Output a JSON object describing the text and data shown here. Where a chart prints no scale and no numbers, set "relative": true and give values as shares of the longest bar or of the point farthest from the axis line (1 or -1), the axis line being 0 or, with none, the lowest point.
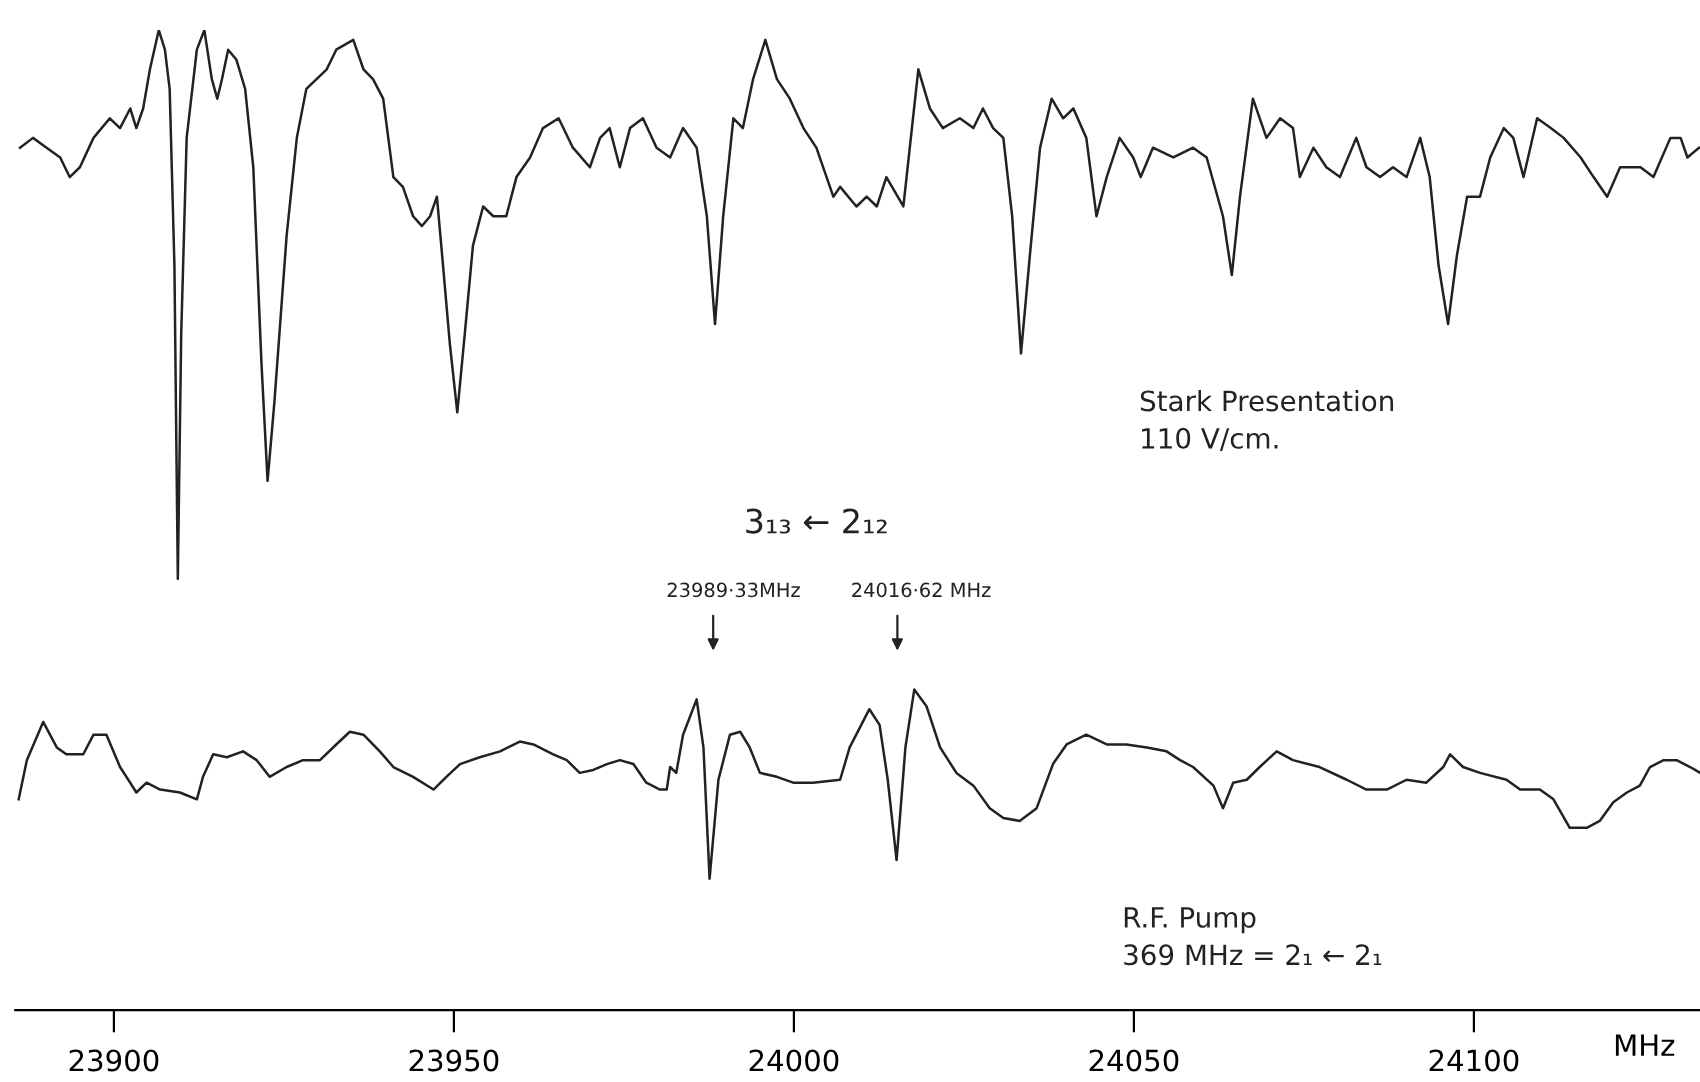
{
  "chart_data": {
    "type": "line",
    "relative": true,
    "tick_labels": "x",
    "xlim": [
      23885.5,
      24134
    ],
    "xticks": [
      23900,
      23950,
      24000,
      24050,
      24100
    ],
    "xlabel": "MHz",
    "series": [
      {
        "color": "#222222",
        "x": [
          23886.2,
          23888.1,
          23890.1,
          23892.1,
          23893.5,
          23895.0,
          23897.0,
          23899.4,
          23900.9,
          23902.4,
          23903.3,
          23904.3,
          23905.3,
          23906.6,
          23907.5,
          23908.2,
          23908.9,
          23909.4,
          23909.9,
          23910.7,
          23912.2,
          23913.3,
          23914.4,
          23915.2,
          23915.9,
          23916.8,
          23918.0,
          23919.3,
          23920.5,
          23921.7,
          23922.6,
          23923.6,
          23925.4,
          23926.9,
          23928.3,
          23929.8,
          23931.3,
          23932.7,
          23935.2,
          23936.7,
          23938.1,
          23939.6,
          23941.1,
          23942.5,
          23944.0,
          23945.3,
          23946.5,
          23947.5,
          23948.4,
          23949.4,
          23950.5,
          23951.6,
          23952.8,
          23954.3,
          23955.8,
          23957.7,
          23959.2,
          23961.2,
          23963.1,
          23965.4,
          23967.5,
          23970.0,
          23971.5,
          23972.9,
          23974.4,
          23975.9,
          23977.8,
          23979.8,
          23981.8,
          23983.7,
          23985.7,
          23987.2,
          23988.4,
          23989.6,
          23991.1,
          23992.5,
          23994.0,
          23995.8,
          23997.5,
          23999.4,
          24001.4,
          24003.3,
          24005.8,
          24006.8,
          24009.2,
          24010.7,
          24012.2,
          24013.6,
          24016.1,
          24018.3,
          24020.0,
          24021.9,
          24024.4,
          24026.4,
          24027.8,
          24029.3,
          24030.8,
          24032.1,
          24033.4,
          24034.7,
          24036.2,
          24037.9,
          24039.6,
          24041.1,
          24043.0,
          24044.5,
          24046.0,
          24047.9,
          24049.9,
          24051.0,
          24052.8,
          24055.8,
          24058.7,
          24060.7,
          24063.1,
          24064.4,
          24065.6,
          24067.5,
          24069.5,
          24071.5,
          24073.4,
          24074.4,
          24076.4,
          24078.3,
          24080.3,
          24082.7,
          24084.2,
          24086.2,
          24088.1,
          24090.1,
          24092.1,
          24093.5,
          24094.8,
          24096.2,
          24097.5,
          24099.0,
          24100.9,
          24102.4,
          24104.4,
          24105.8,
          24107.3,
          24109.3,
          24111.3,
          24113.2,
          24115.7,
          24117.6,
          24119.6,
          24121.5,
          24124.5,
          24126.4,
          24128.9,
          24130.4,
          24131.4,
          24133.1
        ],
        "values": [
          0.88,
          0.89,
          0.88,
          0.87,
          0.85,
          0.86,
          0.89,
          0.91,
          0.9,
          0.92,
          0.9,
          0.92,
          0.96,
          1.0,
          0.98,
          0.94,
          0.76,
          0.44,
          0.69,
          0.89,
          0.98,
          1.0,
          0.95,
          0.93,
          0.95,
          0.98,
          0.97,
          0.94,
          0.86,
          0.66,
          0.54,
          0.62,
          0.79,
          0.89,
          0.94,
          0.95,
          0.96,
          0.98,
          0.99,
          0.96,
          0.95,
          0.93,
          0.85,
          0.84,
          0.81,
          0.8,
          0.81,
          0.83,
          0.76,
          0.68,
          0.61,
          0.69,
          0.78,
          0.82,
          0.81,
          0.81,
          0.85,
          0.87,
          0.9,
          0.91,
          0.88,
          0.86,
          0.89,
          0.9,
          0.86,
          0.9,
          0.91,
          0.88,
          0.87,
          0.9,
          0.88,
          0.81,
          0.7,
          0.81,
          0.91,
          0.9,
          0.95,
          0.99,
          0.95,
          0.93,
          0.9,
          0.88,
          0.83,
          0.84,
          0.82,
          0.83,
          0.82,
          0.85,
          0.82,
          0.96,
          0.92,
          0.9,
          0.91,
          0.9,
          0.92,
          0.9,
          0.89,
          0.81,
          0.67,
          0.77,
          0.88,
          0.93,
          0.91,
          0.92,
          0.89,
          0.81,
          0.85,
          0.89,
          0.87,
          0.85,
          0.88,
          0.87,
          0.88,
          0.87,
          0.81,
          0.75,
          0.83,
          0.93,
          0.89,
          0.91,
          0.9,
          0.85,
          0.88,
          0.86,
          0.85,
          0.89,
          0.86,
          0.85,
          0.86,
          0.85,
          0.89,
          0.85,
          0.76,
          0.7,
          0.77,
          0.83,
          0.83,
          0.87,
          0.9,
          0.89,
          0.85,
          0.91,
          0.9,
          0.89,
          0.87,
          0.85,
          0.83,
          0.86,
          0.86,
          0.85,
          0.89,
          0.89,
          0.87,
          0.88
        ]
      },
      {
        "color": "#222222",
        "x": [
          23886.0,
          23887.2,
          23889.6,
          23891.6,
          23893.0,
          23895.5,
          23897.0,
          23898.9,
          23900.9,
          23902.4,
          23903.3,
          23904.8,
          23906.8,
          23909.7,
          23912.2,
          23913.1,
          23914.6,
          23916.6,
          23919.0,
          23921.0,
          23922.9,
          23925.4,
          23927.8,
          23930.3,
          23932.7,
          23934.7,
          23936.7,
          23939.1,
          23941.1,
          23944.0,
          23947.0,
          23948.9,
          23950.9,
          23953.8,
          23956.8,
          23959.7,
          23961.7,
          23964.6,
          23966.6,
          23968.5,
          23970.5,
          23972.5,
          23974.4,
          23976.4,
          23978.3,
          23980.3,
          23981.3,
          23981.8,
          23982.7,
          23983.7,
          23985.7,
          23986.7,
          23987.6,
          23988.9,
          23990.6,
          23992.1,
          23993.5,
          23995.0,
          23997.5,
          23999.9,
          24002.8,
          24006.8,
          24008.2,
          24011.1,
          24012.6,
          24013.8,
          24015.1,
          24016.4,
          24017.7,
          24019.5,
          24021.5,
          24023.9,
          24026.4,
          24028.8,
          24030.8,
          24033.2,
          24035.7,
          24038.1,
          24040.1,
          24043.0,
          24046.0,
          24048.9,
          24051.9,
          24054.8,
          24056.8,
          24058.7,
          24061.7,
          24063.1,
          24064.6,
          24066.6,
          24068.5,
          24071.0,
          24073.4,
          24077.3,
          24081.3,
          24084.2,
          24087.2,
          24090.1,
          24093.0,
          24095.5,
          24096.5,
          24098.4,
          24100.9,
          24104.8,
          24106.8,
          24109.7,
          24111.7,
          24114.1,
          24116.6,
          24118.5,
          24120.5,
          24122.5,
          24124.4,
          24125.9,
          24127.9,
          24129.8,
          24131.8,
          24133.3
        ],
        "values": [
          0.215,
          0.255,
          0.294,
          0.268,
          0.261,
          0.261,
          0.281,
          0.281,
          0.248,
          0.232,
          0.222,
          0.232,
          0.225,
          0.222,
          0.215,
          0.238,
          0.261,
          0.258,
          0.264,
          0.255,
          0.238,
          0.248,
          0.255,
          0.255,
          0.271,
          0.284,
          0.281,
          0.264,
          0.248,
          0.238,
          0.225,
          0.238,
          0.251,
          0.258,
          0.264,
          0.274,
          0.271,
          0.261,
          0.255,
          0.242,
          0.245,
          0.251,
          0.255,
          0.251,
          0.232,
          0.225,
          0.225,
          0.248,
          0.242,
          0.281,
          0.317,
          0.268,
          0.134,
          0.235,
          0.281,
          0.284,
          0.268,
          0.242,
          0.238,
          0.232,
          0.232,
          0.235,
          0.268,
          0.307,
          0.291,
          0.235,
          0.153,
          0.268,
          0.327,
          0.31,
          0.268,
          0.242,
          0.229,
          0.206,
          0.196,
          0.193,
          0.206,
          0.251,
          0.271,
          0.281,
          0.271,
          0.271,
          0.268,
          0.264,
          0.255,
          0.248,
          0.229,
          0.206,
          0.232,
          0.235,
          0.248,
          0.264,
          0.255,
          0.248,
          0.235,
          0.225,
          0.225,
          0.235,
          0.232,
          0.248,
          0.261,
          0.248,
          0.242,
          0.235,
          0.225,
          0.225,
          0.215,
          0.186,
          0.186,
          0.193,
          0.212,
          0.222,
          0.229,
          0.248,
          0.255,
          0.255,
          0.248,
          0.242
        ]
      }
    ],
    "annotations": [
      "Stark Presentation\n110 V/cm.",
      "3₁₃ ← 2₁₂",
      "23989·33MHz",
      "24016·62 MHz",
      "R.F. Pump\n369 MHz = 2₁ ← 2₁"
    ]
  }
}
